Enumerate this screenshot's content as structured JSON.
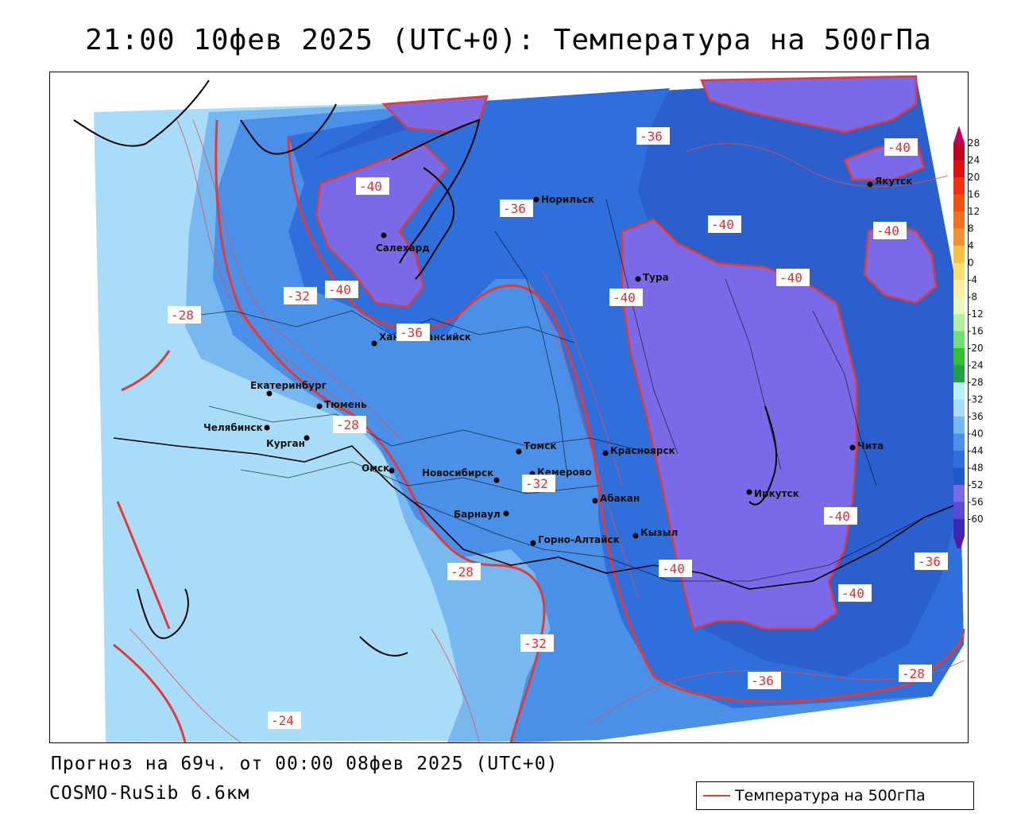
{
  "title": "21:00 10фев 2025 (UTC+0): Температура на 500гПа",
  "footer": {
    "forecast": "Прогноз на 69ч. от 00:00 08фев 2025 (UTC+0)",
    "model": "COSMO-RuSib 6.6км"
  },
  "legend": {
    "label": "Температура на 500гПа",
    "line_color": "#e03a3a"
  },
  "colorbar": {
    "ticks": [
      "28",
      "24",
      "20",
      "16",
      "12",
      "8",
      "4",
      "0",
      "-4",
      "-8",
      "-12",
      "-16",
      "-20",
      "-24",
      "-28",
      "-32",
      "-36",
      "-40",
      "-44",
      "-48",
      "-52",
      "-56",
      "-60"
    ],
    "colors": [
      "#c00020",
      "#e01010",
      "#f03010",
      "#f05010",
      "#f07020",
      "#f09030",
      "#f8c040",
      "#f8e070",
      "#f8f0a0",
      "#e8f8c0",
      "#b0f0a0",
      "#70e070",
      "#30c030",
      "#20a040",
      "#b8f0f8",
      "#a8dcf8",
      "#78b8f0",
      "#4a90e8",
      "#2f6fdc",
      "#1f5ac8",
      "#7b6ae8",
      "#5b4ad8",
      "#3b2ab8",
      "#2b1aa0",
      "#4a1a90"
    ]
  },
  "cities": [
    {
      "name": "Норильск"
    },
    {
      "name": "Салехард"
    },
    {
      "name": "Якутск"
    },
    {
      "name": "Тура"
    },
    {
      "name": "Ханты-Мансийск"
    },
    {
      "name": "Екатеринбург"
    },
    {
      "name": "Тюмень"
    },
    {
      "name": "Челябинск"
    },
    {
      "name": "Курган"
    },
    {
      "name": "Омск"
    },
    {
      "name": "Томск"
    },
    {
      "name": "Красноярск"
    },
    {
      "name": "Новосибирск"
    },
    {
      "name": "Кемерово"
    },
    {
      "name": "Абакан"
    },
    {
      "name": "Иркутск"
    },
    {
      "name": "Чита"
    },
    {
      "name": "Барнаул"
    },
    {
      "name": "Горно-Алтайск"
    },
    {
      "name": "Кызыл"
    }
  ],
  "isoline_labels": [
    "-40",
    "-36",
    "-36",
    "-40",
    "-40",
    "-40",
    "-32",
    "-40",
    "-28",
    "-40",
    "-40",
    "-36",
    "-28",
    "-32",
    "-40",
    "-28",
    "-36",
    "-40",
    "-40",
    "-32",
    "-36",
    "-28",
    "-24"
  ],
  "regions": {
    "light_blue": "#a8dcf8",
    "mid_blue": "#78b8f0",
    "blue": "#4a90e8",
    "deep_blue": "#2f6fdc",
    "purple": "#7b6ae8",
    "contour": "#e03a3a"
  }
}
